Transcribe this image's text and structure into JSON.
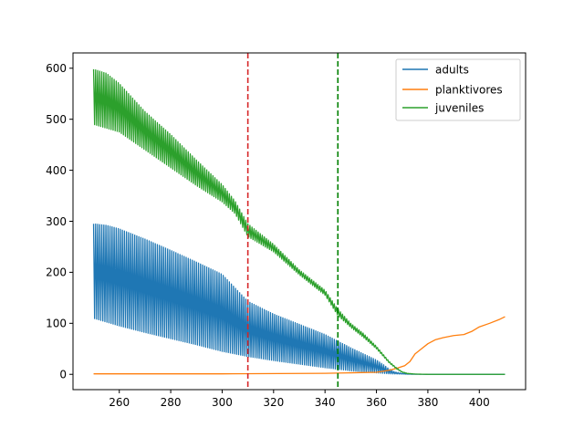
{
  "chart_data": {
    "type": "line",
    "title": "",
    "xlabel": "",
    "ylabel": "",
    "xlim": [
      242,
      418
    ],
    "ylim": [
      -30,
      630
    ],
    "xticks": [
      260,
      280,
      300,
      320,
      340,
      360,
      380,
      400
    ],
    "yticks": [
      0,
      100,
      200,
      300,
      400,
      500,
      600
    ],
    "legend": {
      "position": "top-right",
      "entries": [
        "adults",
        "planktivores",
        "juveniles"
      ]
    },
    "series": [
      {
        "name": "adults",
        "color": "#1f77b4",
        "oscillating": true,
        "upper_envelope": [
          [
            250,
            295
          ],
          [
            255,
            292
          ],
          [
            260,
            285
          ],
          [
            270,
            265
          ],
          [
            280,
            243
          ],
          [
            290,
            220
          ],
          [
            300,
            196
          ],
          [
            310,
            143
          ],
          [
            320,
            118
          ],
          [
            330,
            98
          ],
          [
            340,
            78
          ],
          [
            350,
            52
          ],
          [
            360,
            28
          ],
          [
            363,
            18
          ],
          [
            365,
            10
          ],
          [
            367,
            5
          ],
          [
            370,
            2
          ],
          [
            372,
            0.5
          ],
          [
            380,
            0
          ],
          [
            410,
            0
          ]
        ],
        "lower_envelope": [
          [
            250,
            110
          ],
          [
            260,
            95
          ],
          [
            270,
            82
          ],
          [
            280,
            70
          ],
          [
            290,
            58
          ],
          [
            300,
            45
          ],
          [
            310,
            35
          ],
          [
            320,
            27
          ],
          [
            330,
            20
          ],
          [
            340,
            13
          ],
          [
            350,
            7
          ],
          [
            360,
            3
          ],
          [
            365,
            1
          ],
          [
            370,
            0.5
          ],
          [
            380,
            0
          ],
          [
            410,
            0
          ]
        ]
      },
      {
        "name": "planktivores",
        "color": "#ff7f0e",
        "oscillating": false,
        "points": [
          [
            250,
            1
          ],
          [
            300,
            1
          ],
          [
            340,
            2
          ],
          [
            350,
            3
          ],
          [
            360,
            4
          ],
          [
            365,
            8
          ],
          [
            368,
            12
          ],
          [
            371,
            17
          ],
          [
            373,
            25
          ],
          [
            375,
            40
          ],
          [
            378,
            52
          ],
          [
            380,
            60
          ],
          [
            383,
            68
          ],
          [
            386,
            72
          ],
          [
            390,
            76
          ],
          [
            394,
            78
          ],
          [
            397,
            84
          ],
          [
            400,
            93
          ],
          [
            404,
            100
          ],
          [
            408,
            108
          ],
          [
            410,
            113
          ]
        ]
      },
      {
        "name": "juveniles",
        "color": "#2ca02c",
        "oscillating": true,
        "upper_envelope": [
          [
            250,
            598
          ],
          [
            255,
            590
          ],
          [
            260,
            570
          ],
          [
            270,
            515
          ],
          [
            280,
            470
          ],
          [
            290,
            420
          ],
          [
            300,
            372
          ],
          [
            305,
            340
          ],
          [
            310,
            295
          ],
          [
            320,
            255
          ],
          [
            330,
            205
          ],
          [
            335,
            185
          ],
          [
            340,
            165
          ],
          [
            345,
            128
          ],
          [
            350,
            100
          ],
          [
            355,
            80
          ],
          [
            360,
            55
          ],
          [
            365,
            25
          ],
          [
            368,
            12
          ],
          [
            370,
            5
          ],
          [
            372,
            2
          ],
          [
            375,
            0.5
          ],
          [
            380,
            0
          ],
          [
            410,
            0
          ]
        ],
        "lower_envelope": [
          [
            250,
            490
          ],
          [
            260,
            475
          ],
          [
            270,
            440
          ],
          [
            280,
            405
          ],
          [
            290,
            370
          ],
          [
            300,
            338
          ],
          [
            305,
            315
          ],
          [
            310,
            270
          ],
          [
            320,
            240
          ],
          [
            330,
            195
          ],
          [
            335,
            175
          ],
          [
            340,
            155
          ],
          [
            345,
            115
          ],
          [
            350,
            92
          ],
          [
            355,
            72
          ],
          [
            360,
            50
          ],
          [
            365,
            22
          ],
          [
            368,
            10
          ],
          [
            370,
            4
          ],
          [
            372,
            1.5
          ],
          [
            375,
            0.5
          ],
          [
            380,
            0
          ],
          [
            410,
            0
          ]
        ]
      }
    ],
    "vertical_lines": [
      {
        "x": 310,
        "color": "#d62728",
        "style": "dashed"
      },
      {
        "x": 345,
        "color": "#008000",
        "style": "dashed"
      }
    ]
  }
}
